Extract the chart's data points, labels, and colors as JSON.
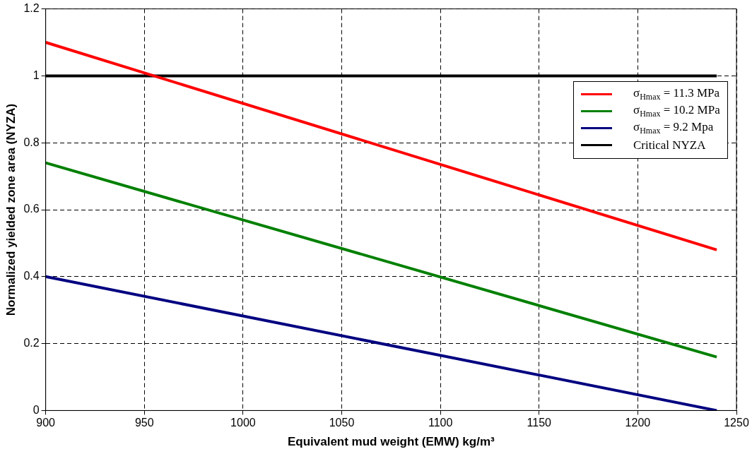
{
  "chart_data": {
    "type": "line",
    "xlabel": "Equivalent mud weight (EMW) kg/m³",
    "ylabel": "Normalized yielded zone area (NYZA)",
    "x": [
      900,
      1240
    ],
    "xlim": [
      900,
      1250
    ],
    "xticks": [
      900,
      950,
      1000,
      1050,
      1100,
      1150,
      1200,
      1250
    ],
    "ylim": [
      0,
      1.2
    ],
    "yticks": [
      0,
      0.2,
      0.4,
      0.6,
      0.8,
      1,
      1.2
    ],
    "grid": true,
    "legend": "right",
    "marker": "none",
    "line_style": "solid",
    "series": [
      {
        "name": "σ$_{Hmax}$ = 11.3 MPa",
        "color": "#ff0000",
        "values": [
          1.1,
          0.48
        ]
      },
      {
        "name": "σ$_{Hmax}$ = 10.2 MPa",
        "color": "#008000",
        "values": [
          0.74,
          0.16
        ]
      },
      {
        "name": "σ$_{Hmax}$ = 9.2 Mpa",
        "color": "#000080",
        "values": [
          0.4,
          0
        ]
      },
      {
        "name": "Critical NYZA",
        "color": "#000000",
        "values": [
          1,
          1
        ]
      }
    ]
  }
}
